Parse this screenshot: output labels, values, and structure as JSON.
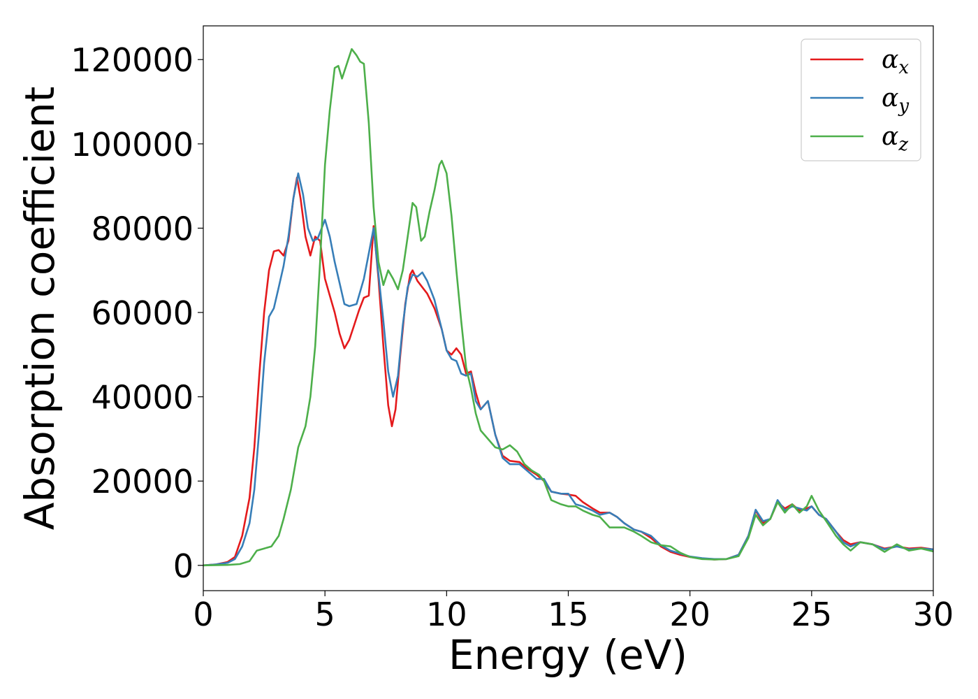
{
  "chart_data": {
    "type": "line",
    "title": "",
    "xlabel": "Energy (eV)",
    "ylabel": "Absorption coefficient",
    "xlim": [
      0,
      30
    ],
    "ylim": [
      -6000,
      128000
    ],
    "x_ticks": [
      0,
      5,
      10,
      15,
      20,
      25,
      30
    ],
    "x_tick_labels": [
      "0",
      "5",
      "10",
      "15",
      "20",
      "25",
      "30"
    ],
    "y_ticks": [
      0,
      20000,
      40000,
      60000,
      80000,
      100000,
      120000
    ],
    "y_tick_labels": [
      "0",
      "20000",
      "40000",
      "60000",
      "80000",
      "100000",
      "120000"
    ],
    "grid": false,
    "legend_placement": "top-right",
    "series": [
      {
        "name": "α",
        "subscript": "x",
        "color": "#e41a1c",
        "points": [
          [
            0,
            0
          ],
          [
            0.5,
            200
          ],
          [
            1.0,
            800
          ],
          [
            1.3,
            2000
          ],
          [
            1.6,
            7000
          ],
          [
            1.9,
            16000
          ],
          [
            2.1,
            28000
          ],
          [
            2.3,
            45000
          ],
          [
            2.5,
            60000
          ],
          [
            2.7,
            70000
          ],
          [
            2.9,
            74500
          ],
          [
            3.1,
            74800
          ],
          [
            3.3,
            73500
          ],
          [
            3.5,
            77000
          ],
          [
            3.7,
            87000
          ],
          [
            3.85,
            92000
          ],
          [
            4.0,
            87000
          ],
          [
            4.2,
            78000
          ],
          [
            4.4,
            73500
          ],
          [
            4.6,
            78000
          ],
          [
            4.8,
            77000
          ],
          [
            5.0,
            68000
          ],
          [
            5.2,
            64000
          ],
          [
            5.4,
            60000
          ],
          [
            5.6,
            55000
          ],
          [
            5.8,
            51500
          ],
          [
            6.0,
            53500
          ],
          [
            6.2,
            57000
          ],
          [
            6.4,
            60500
          ],
          [
            6.6,
            63500
          ],
          [
            6.8,
            64000
          ],
          [
            7.0,
            80500
          ],
          [
            7.2,
            68000
          ],
          [
            7.4,
            52000
          ],
          [
            7.6,
            38000
          ],
          [
            7.75,
            33000
          ],
          [
            7.9,
            37000
          ],
          [
            8.1,
            50000
          ],
          [
            8.3,
            62000
          ],
          [
            8.5,
            69000
          ],
          [
            8.6,
            70000
          ],
          [
            8.8,
            67500
          ],
          [
            9.0,
            66000
          ],
          [
            9.2,
            64500
          ],
          [
            9.5,
            61000
          ],
          [
            9.8,
            56000
          ],
          [
            10.0,
            51000
          ],
          [
            10.2,
            50000
          ],
          [
            10.4,
            51500
          ],
          [
            10.6,
            50000
          ],
          [
            10.8,
            45500
          ],
          [
            11.0,
            46000
          ],
          [
            11.2,
            41000
          ],
          [
            11.4,
            37000
          ],
          [
            11.7,
            39000
          ],
          [
            12.0,
            31000
          ],
          [
            12.3,
            26000
          ],
          [
            12.6,
            24800
          ],
          [
            13.0,
            24500
          ],
          [
            13.3,
            23000
          ],
          [
            13.7,
            21500
          ],
          [
            14.0,
            20000
          ],
          [
            14.3,
            17500
          ],
          [
            14.7,
            17000
          ],
          [
            15.0,
            16800
          ],
          [
            15.3,
            16500
          ],
          [
            15.6,
            15000
          ],
          [
            16.0,
            13500
          ],
          [
            16.3,
            12500
          ],
          [
            16.7,
            12500
          ],
          [
            17.0,
            11500
          ],
          [
            17.3,
            10000
          ],
          [
            17.7,
            8500
          ],
          [
            18.0,
            8000
          ],
          [
            18.4,
            6500
          ],
          [
            18.8,
            4500
          ],
          [
            19.2,
            3200
          ],
          [
            19.6,
            2500
          ],
          [
            20.0,
            2000
          ],
          [
            20.5,
            1600
          ],
          [
            21.0,
            1400
          ],
          [
            21.5,
            1500
          ],
          [
            22.0,
            2500
          ],
          [
            22.4,
            7000
          ],
          [
            22.7,
            13000
          ],
          [
            23.0,
            10000
          ],
          [
            23.3,
            11000
          ],
          [
            23.6,
            15000
          ],
          [
            23.9,
            13500
          ],
          [
            24.2,
            14500
          ],
          [
            24.5,
            13000
          ],
          [
            24.8,
            13500
          ],
          [
            25.0,
            14000
          ],
          [
            25.3,
            12000
          ],
          [
            25.6,
            11000
          ],
          [
            26.0,
            8000
          ],
          [
            26.3,
            6000
          ],
          [
            26.6,
            5000
          ],
          [
            27.0,
            5500
          ],
          [
            27.5,
            5000
          ],
          [
            28.0,
            4000
          ],
          [
            28.5,
            4500
          ],
          [
            29.0,
            4000
          ],
          [
            29.5,
            4200
          ],
          [
            30.0,
            3800
          ]
        ]
      },
      {
        "name": "α",
        "subscript": "y",
        "color": "#377eb8",
        "points": [
          [
            0,
            0
          ],
          [
            0.5,
            200
          ],
          [
            1.0,
            600
          ],
          [
            1.3,
            1500
          ],
          [
            1.6,
            4500
          ],
          [
            1.9,
            10000
          ],
          [
            2.1,
            18000
          ],
          [
            2.3,
            32000
          ],
          [
            2.5,
            48000
          ],
          [
            2.7,
            59000
          ],
          [
            2.9,
            61000
          ],
          [
            3.1,
            66000
          ],
          [
            3.3,
            71000
          ],
          [
            3.5,
            78000
          ],
          [
            3.7,
            87000
          ],
          [
            3.9,
            93000
          ],
          [
            4.1,
            88000
          ],
          [
            4.3,
            80000
          ],
          [
            4.5,
            77000
          ],
          [
            4.7,
            77500
          ],
          [
            5.0,
            82000
          ],
          [
            5.2,
            78000
          ],
          [
            5.4,
            72000
          ],
          [
            5.6,
            67000
          ],
          [
            5.8,
            62000
          ],
          [
            6.0,
            61500
          ],
          [
            6.3,
            62000
          ],
          [
            6.6,
            68000
          ],
          [
            6.8,
            74000
          ],
          [
            7.0,
            80000
          ],
          [
            7.2,
            69000
          ],
          [
            7.4,
            58000
          ],
          [
            7.6,
            46000
          ],
          [
            7.8,
            40000
          ],
          [
            8.0,
            45000
          ],
          [
            8.2,
            57000
          ],
          [
            8.4,
            66000
          ],
          [
            8.6,
            69000
          ],
          [
            8.8,
            68500
          ],
          [
            9.0,
            69500
          ],
          [
            9.2,
            67500
          ],
          [
            9.5,
            63000
          ],
          [
            9.8,
            56000
          ],
          [
            10.0,
            51000
          ],
          [
            10.2,
            49000
          ],
          [
            10.4,
            48500
          ],
          [
            10.6,
            45500
          ],
          [
            10.8,
            45000
          ],
          [
            11.0,
            45500
          ],
          [
            11.2,
            39000
          ],
          [
            11.4,
            37000
          ],
          [
            11.7,
            39000
          ],
          [
            12.0,
            31000
          ],
          [
            12.3,
            25500
          ],
          [
            12.6,
            24000
          ],
          [
            13.0,
            24000
          ],
          [
            13.3,
            22500
          ],
          [
            13.7,
            20500
          ],
          [
            14.0,
            20500
          ],
          [
            14.3,
            17500
          ],
          [
            14.7,
            17000
          ],
          [
            15.0,
            17000
          ],
          [
            15.3,
            14500
          ],
          [
            15.6,
            14000
          ],
          [
            16.0,
            13000
          ],
          [
            16.3,
            12000
          ],
          [
            16.7,
            12500
          ],
          [
            17.0,
            11500
          ],
          [
            17.3,
            10000
          ],
          [
            17.7,
            8500
          ],
          [
            18.0,
            8000
          ],
          [
            18.4,
            7000
          ],
          [
            18.8,
            4800
          ],
          [
            19.2,
            3500
          ],
          [
            19.6,
            2800
          ],
          [
            20.0,
            2100
          ],
          [
            20.5,
            1700
          ],
          [
            21.0,
            1500
          ],
          [
            21.5,
            1500
          ],
          [
            22.0,
            2500
          ],
          [
            22.4,
            7000
          ],
          [
            22.7,
            13200
          ],
          [
            23.0,
            10500
          ],
          [
            23.3,
            11000
          ],
          [
            23.6,
            15500
          ],
          [
            23.9,
            13000
          ],
          [
            24.2,
            14000
          ],
          [
            24.5,
            13500
          ],
          [
            24.8,
            13000
          ],
          [
            25.0,
            14000
          ],
          [
            25.3,
            12000
          ],
          [
            25.6,
            11000
          ],
          [
            26.0,
            8000
          ],
          [
            26.3,
            5500
          ],
          [
            26.6,
            4500
          ],
          [
            27.0,
            5500
          ],
          [
            27.5,
            5000
          ],
          [
            28.0,
            3800
          ],
          [
            28.5,
            4500
          ],
          [
            29.0,
            3800
          ],
          [
            29.5,
            4000
          ],
          [
            30.0,
            3800
          ]
        ]
      },
      {
        "name": "α",
        "subscript": "z",
        "color": "#4daf4a",
        "points": [
          [
            0,
            0
          ],
          [
            1.0,
            100
          ],
          [
            1.5,
            300
          ],
          [
            1.9,
            1000
          ],
          [
            2.2,
            3500
          ],
          [
            2.5,
            4000
          ],
          [
            2.8,
            4500
          ],
          [
            3.1,
            7000
          ],
          [
            3.3,
            11000
          ],
          [
            3.6,
            18000
          ],
          [
            3.9,
            28000
          ],
          [
            4.2,
            33000
          ],
          [
            4.4,
            40000
          ],
          [
            4.6,
            52000
          ],
          [
            4.8,
            72000
          ],
          [
            5.0,
            95000
          ],
          [
            5.2,
            108000
          ],
          [
            5.4,
            118000
          ],
          [
            5.55,
            118500
          ],
          [
            5.7,
            115500
          ],
          [
            5.9,
            119000
          ],
          [
            6.1,
            122500
          ],
          [
            6.3,
            121000
          ],
          [
            6.45,
            119500
          ],
          [
            6.6,
            119000
          ],
          [
            6.8,
            105000
          ],
          [
            7.0,
            85000
          ],
          [
            7.2,
            72000
          ],
          [
            7.4,
            66500
          ],
          [
            7.6,
            70000
          ],
          [
            7.8,
            68000
          ],
          [
            8.0,
            65500
          ],
          [
            8.2,
            70000
          ],
          [
            8.4,
            78000
          ],
          [
            8.6,
            86000
          ],
          [
            8.75,
            85000
          ],
          [
            8.95,
            77000
          ],
          [
            9.1,
            78000
          ],
          [
            9.3,
            84000
          ],
          [
            9.5,
            89000
          ],
          [
            9.7,
            95000
          ],
          [
            9.8,
            96000
          ],
          [
            10.0,
            93000
          ],
          [
            10.2,
            83000
          ],
          [
            10.4,
            70000
          ],
          [
            10.6,
            58000
          ],
          [
            10.8,
            47000
          ],
          [
            11.0,
            42000
          ],
          [
            11.2,
            36000
          ],
          [
            11.4,
            32000
          ],
          [
            11.7,
            30000
          ],
          [
            12.0,
            28000
          ],
          [
            12.3,
            27500
          ],
          [
            12.6,
            28500
          ],
          [
            12.9,
            27000
          ],
          [
            13.2,
            24000
          ],
          [
            13.5,
            22500
          ],
          [
            13.8,
            21500
          ],
          [
            14.0,
            20000
          ],
          [
            14.3,
            15500
          ],
          [
            14.7,
            14500
          ],
          [
            15.0,
            14000
          ],
          [
            15.3,
            14000
          ],
          [
            15.6,
            13000
          ],
          [
            16.0,
            12000
          ],
          [
            16.3,
            11500
          ],
          [
            16.7,
            9000
          ],
          [
            17.0,
            9000
          ],
          [
            17.3,
            9000
          ],
          [
            17.7,
            8000
          ],
          [
            18.0,
            7000
          ],
          [
            18.4,
            5500
          ],
          [
            18.8,
            4800
          ],
          [
            19.2,
            4500
          ],
          [
            19.6,
            3000
          ],
          [
            20.0,
            2000
          ],
          [
            20.5,
            1500
          ],
          [
            21.0,
            1400
          ],
          [
            21.5,
            1500
          ],
          [
            22.0,
            2200
          ],
          [
            22.4,
            6500
          ],
          [
            22.7,
            12000
          ],
          [
            23.0,
            9500
          ],
          [
            23.3,
            11000
          ],
          [
            23.6,
            15000
          ],
          [
            23.9,
            12500
          ],
          [
            24.2,
            14500
          ],
          [
            24.5,
            12500
          ],
          [
            24.8,
            14000
          ],
          [
            25.0,
            16500
          ],
          [
            25.3,
            13000
          ],
          [
            25.6,
            10500
          ],
          [
            26.0,
            7000
          ],
          [
            26.3,
            5000
          ],
          [
            26.6,
            3500
          ],
          [
            27.0,
            5500
          ],
          [
            27.5,
            5000
          ],
          [
            28.0,
            3200
          ],
          [
            28.5,
            5000
          ],
          [
            29.0,
            3500
          ],
          [
            29.5,
            4000
          ],
          [
            30.0,
            3300
          ]
        ]
      }
    ]
  }
}
